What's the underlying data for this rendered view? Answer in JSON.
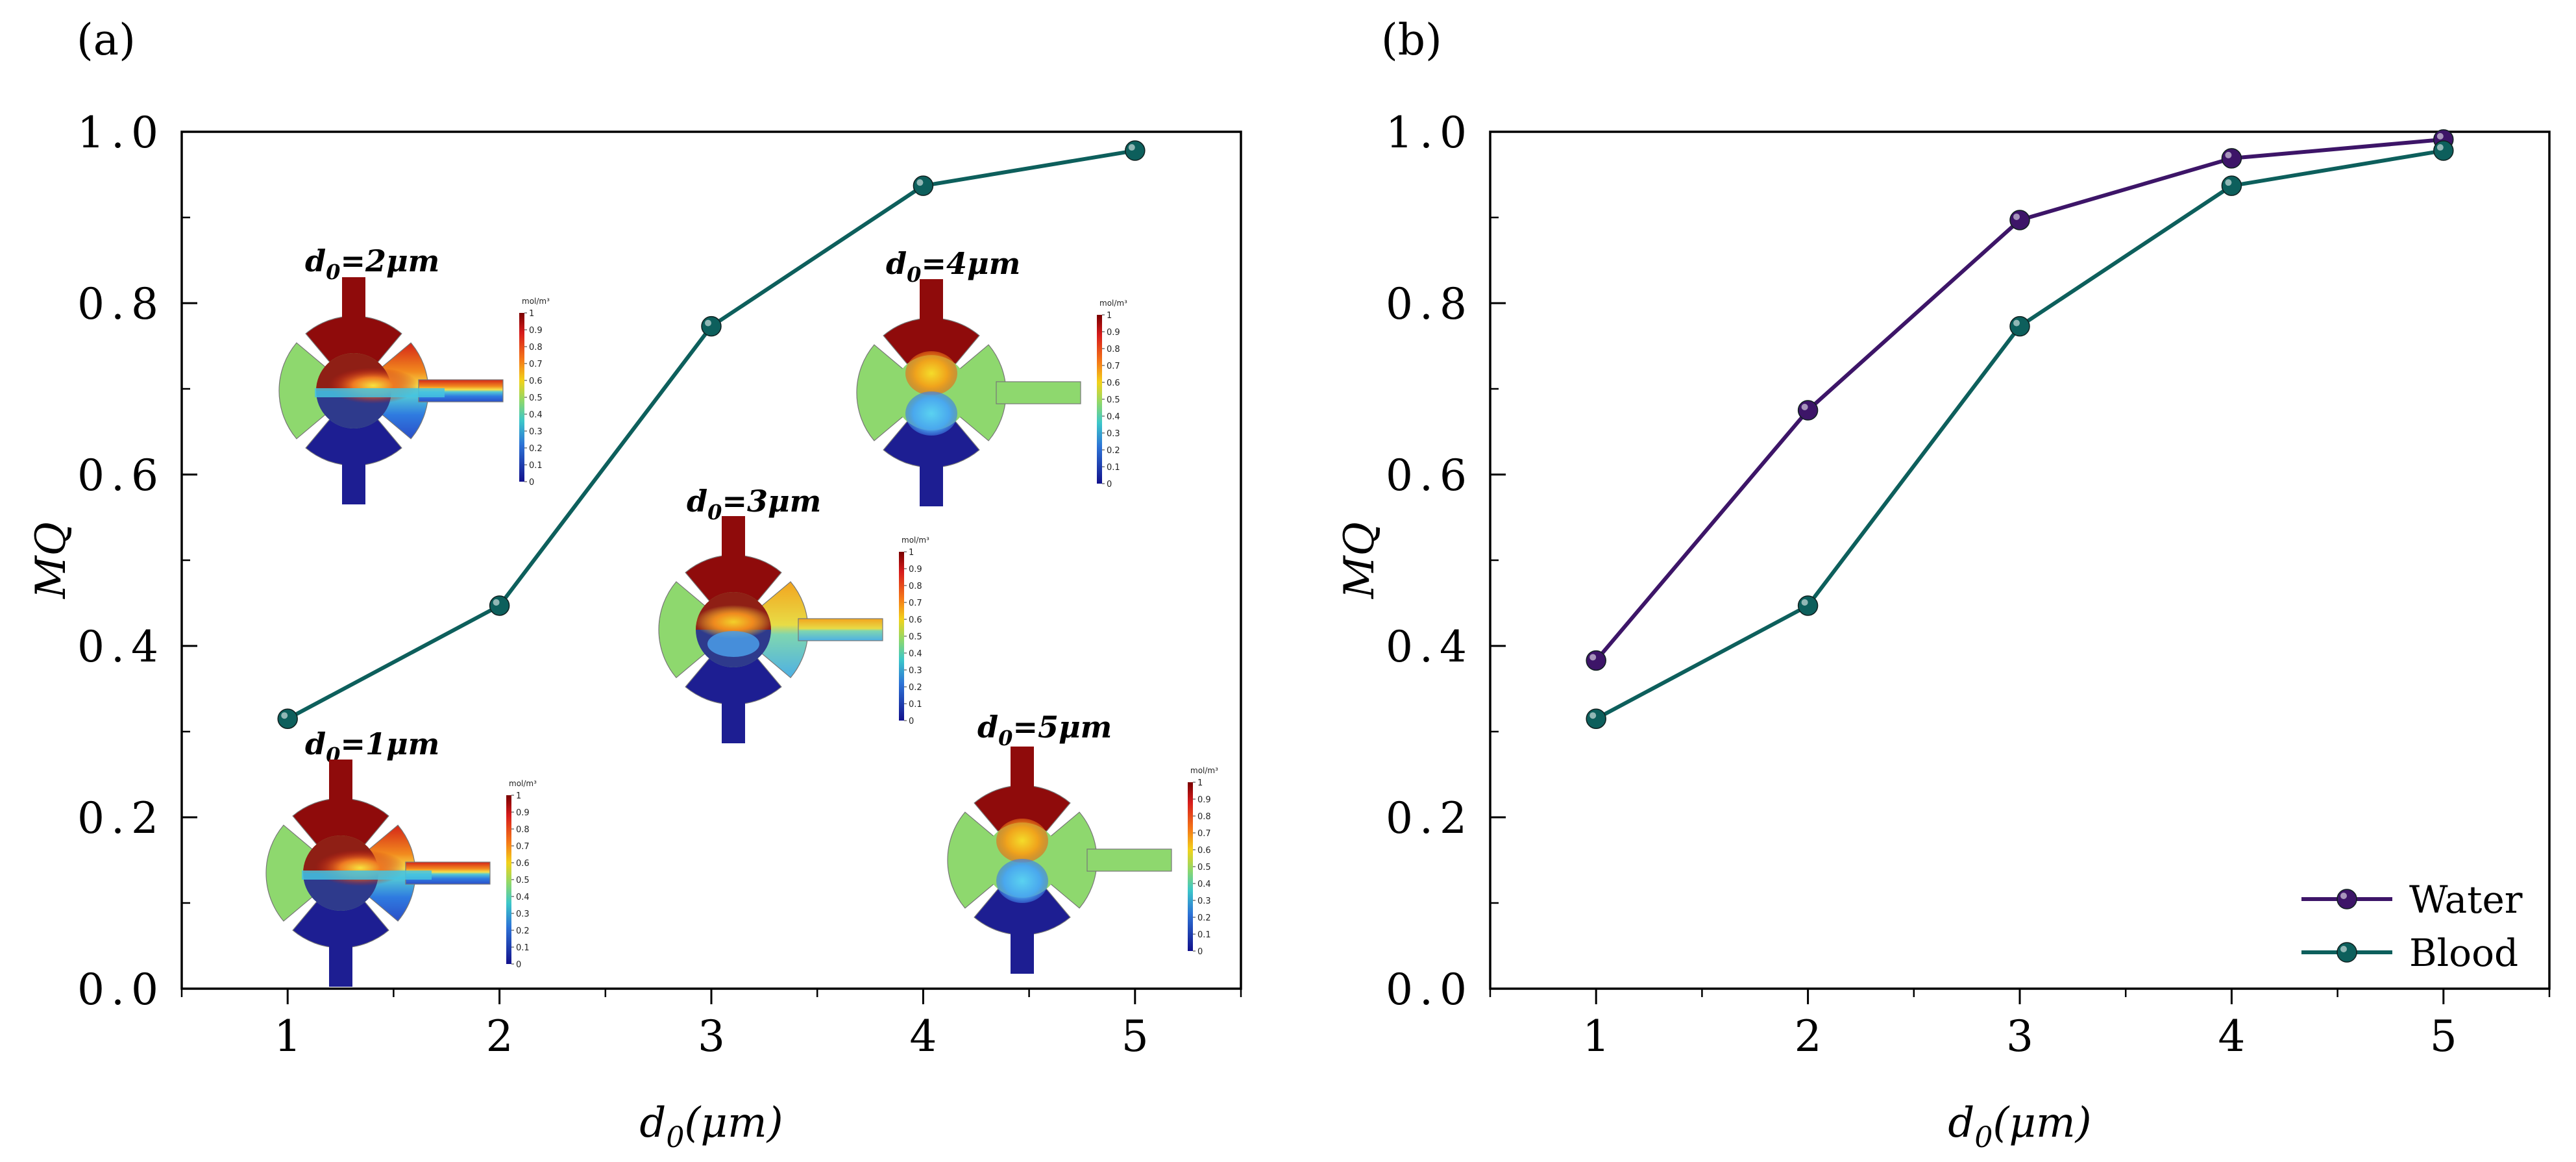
{
  "panel_labels": [
    "(a)",
    "(b)"
  ],
  "colors": {
    "water": "#3d1568",
    "blood": "#0d5f5c"
  },
  "insets": [
    {
      "label_main": "d",
      "label_sub": "0",
      "label_rest": "=2μm",
      "mode": "strong"
    },
    {
      "label_main": "d",
      "label_sub": "0",
      "label_rest": "=4μm",
      "mode": "weak"
    },
    {
      "label_main": "d",
      "label_sub": "0",
      "label_rest": "=3μm",
      "mode": "mid"
    },
    {
      "label_main": "d",
      "label_sub": "0",
      "label_rest": "=1μm",
      "mode": "strong"
    },
    {
      "label_main": "d",
      "label_sub": "0",
      "label_rest": "=5μm",
      "mode": "weak"
    }
  ],
  "colorbar": {
    "unit": "mol/m³",
    "ticks": [
      "1",
      "0.9",
      "0.8",
      "0.7",
      "0.6",
      "0.5",
      "0.4",
      "0.3",
      "0.2",
      "0.1",
      "0"
    ]
  },
  "chart_data": [
    {
      "type": "line",
      "panel": "(a)",
      "x": [
        1,
        2,
        3,
        4,
        5
      ],
      "series": [
        {
          "name": "Blood",
          "values": [
            0.315,
            0.447,
            0.773,
            0.937,
            0.978
          ]
        }
      ],
      "xlabel_main": "d",
      "xlabel_sub": "0",
      "xlabel_rest": "(μm)",
      "ylabel": "MQ",
      "xlim": [
        0.5,
        5.5
      ],
      "ylim": [
        0.0,
        1.0
      ],
      "xticks": [
        "1",
        "2",
        "3",
        "4",
        "5"
      ],
      "yticks": [
        "0.0",
        "0.2",
        "0.4",
        "0.6",
        "0.8",
        "1.0"
      ],
      "grid": false,
      "legend": "none"
    },
    {
      "type": "line",
      "panel": "(b)",
      "x": [
        1,
        2,
        3,
        4,
        5
      ],
      "series": [
        {
          "name": "Water",
          "values": [
            0.383,
            0.675,
            0.897,
            0.969,
            0.991
          ]
        },
        {
          "name": "Blood",
          "values": [
            0.315,
            0.447,
            0.773,
            0.937,
            0.978
          ]
        }
      ],
      "xlabel_main": "d",
      "xlabel_sub": "0",
      "xlabel_rest": "(μm)",
      "ylabel": "MQ",
      "xlim": [
        0.5,
        5.5
      ],
      "ylim": [
        0.0,
        1.0
      ],
      "xticks": [
        "1",
        "2",
        "3",
        "4",
        "5"
      ],
      "yticks": [
        "0.0",
        "0.2",
        "0.4",
        "0.6",
        "0.8",
        "1.0"
      ],
      "grid": false,
      "legend": "bottom-right"
    }
  ]
}
